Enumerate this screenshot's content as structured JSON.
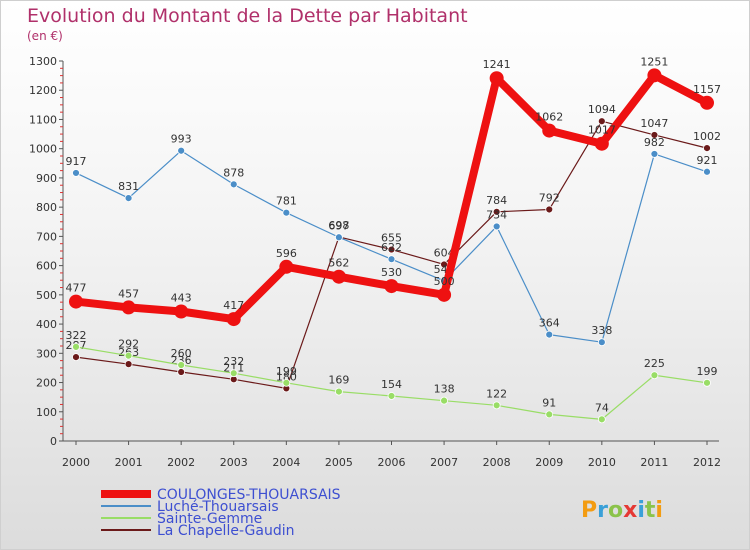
{
  "title": "Evolution du Montant de la Dette par Habitant",
  "subtitle": "(en €)",
  "logo_text": "Proxiti",
  "chart_data": {
    "type": "line",
    "x": [
      "2000",
      "2001",
      "2002",
      "2003",
      "2004",
      "2005",
      "2006",
      "2007",
      "2008",
      "2009",
      "2010",
      "2011",
      "2012"
    ],
    "ylim": [
      0,
      1300
    ],
    "yticks": [
      0,
      100,
      200,
      300,
      400,
      500,
      600,
      700,
      800,
      900,
      1000,
      1100,
      1200,
      1300
    ],
    "grid": false,
    "legend_position": "bottom-left",
    "series": [
      {
        "name": "COULONGES-THOUARSAIS",
        "color": "#ee1111",
        "values": [
          477,
          457,
          443,
          417,
          596,
          562,
          530,
          500,
          1241,
          1062,
          1017,
          1251,
          1157
        ]
      },
      {
        "name": "Luché-Thouarsais",
        "color": "#4b8ec8",
        "values": [
          917,
          831,
          993,
          878,
          781,
          697,
          622,
          548,
          734,
          364,
          338,
          982,
          921
        ]
      },
      {
        "name": "Sainte-Gemme",
        "color": "#99dd66",
        "values": [
          322,
          292,
          260,
          232,
          199,
          169,
          154,
          138,
          122,
          91,
          74,
          225,
          199
        ]
      },
      {
        "name": "La Chapelle-Gaudin",
        "color": "#6b1a1a",
        "values": [
          287,
          263,
          236,
          211,
          180,
          698,
          655,
          604,
          784,
          792,
          1094,
          1047,
          1002
        ]
      }
    ]
  }
}
